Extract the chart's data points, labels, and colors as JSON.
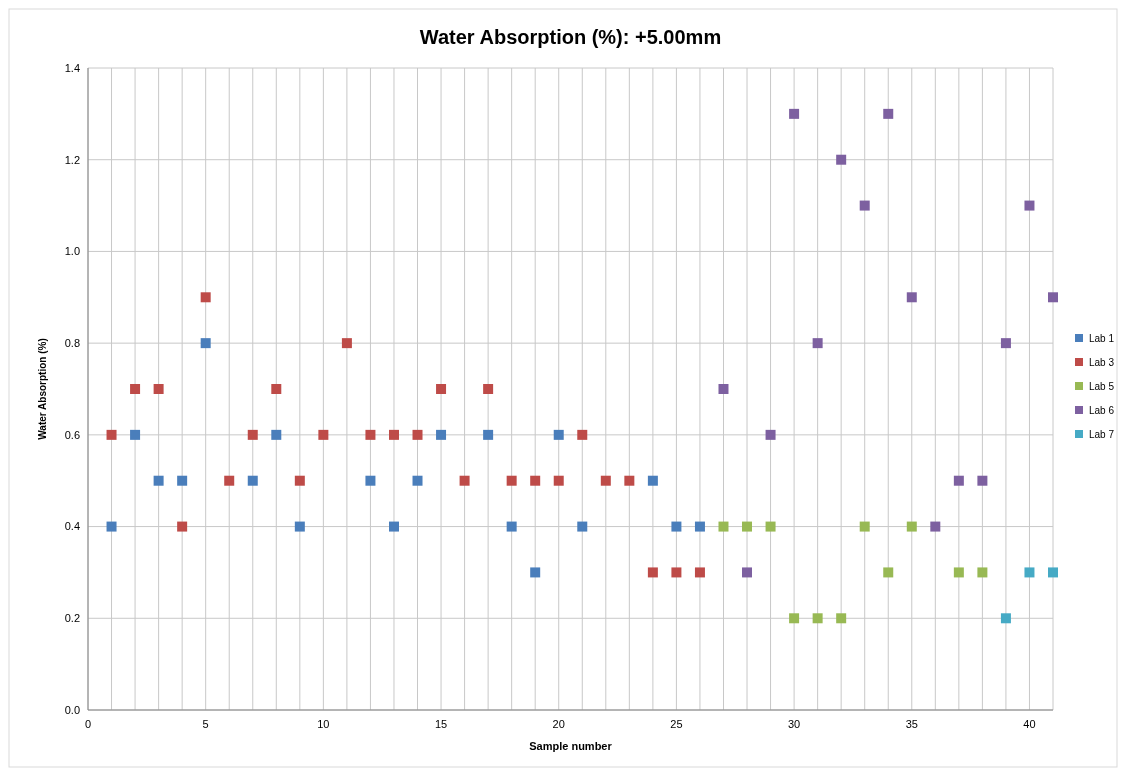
{
  "chart_data": {
    "type": "scatter",
    "title": "Water Absorption (%): +5.00mm",
    "xlabel": "Sample number",
    "ylabel": "Water Absorption (%)",
    "xlim": [
      0,
      41
    ],
    "xticks": [
      0,
      {
        "value": 1,
        "label": null
      },
      {
        "value": 2,
        "label": null
      },
      {
        "value": 3,
        "label": null
      },
      {
        "value": 4,
        "label": null
      },
      5,
      {
        "value": 6,
        "label": null
      },
      {
        "value": 7,
        "label": null
      },
      {
        "value": 8,
        "label": null
      },
      {
        "value": 9,
        "label": null
      },
      10,
      {
        "value": 11,
        "label": null
      },
      {
        "value": 12,
        "label": null
      },
      {
        "value": 13,
        "label": null
      },
      {
        "value": 14,
        "label": null
      },
      15,
      {
        "value": 16,
        "label": null
      },
      {
        "value": 17,
        "label": null
      },
      {
        "value": 18,
        "label": null
      },
      {
        "value": 19,
        "label": null
      },
      20,
      {
        "value": 21,
        "label": null
      },
      {
        "value": 22,
        "label": null
      },
      {
        "value": 23,
        "label": null
      },
      {
        "value": 24,
        "label": null
      },
      25,
      {
        "value": 26,
        "label": null
      },
      {
        "value": 27,
        "label": null
      },
      {
        "value": 28,
        "label": null
      },
      {
        "value": 29,
        "label": null
      },
      30,
      {
        "value": 31,
        "label": null
      },
      {
        "value": 32,
        "label": null
      },
      {
        "value": 33,
        "label": null
      },
      {
        "value": 34,
        "label": null
      },
      35,
      {
        "value": 36,
        "label": null
      },
      {
        "value": 37,
        "label": null
      },
      {
        "value": 38,
        "label": null
      },
      {
        "value": 39,
        "label": null
      },
      40,
      {
        "value": 41,
        "label": null
      }
    ],
    "ylim": [
      0,
      1.4
    ],
    "yticks": [
      {
        "value": 0,
        "label": "0.0"
      },
      {
        "value": 0.2,
        "label": "0.2"
      },
      {
        "value": 0.4,
        "label": "0.4"
      },
      {
        "value": 0.6,
        "label": "0.6"
      },
      {
        "value": 0.8,
        "label": "0.8"
      },
      {
        "value": 1,
        "label": "1.0"
      },
      {
        "value": 1.2,
        "label": "1.2"
      },
      {
        "value": 1.4,
        "label": "1.4"
      }
    ],
    "grid": true,
    "legend": "right",
    "marker": "square",
    "series": [
      {
        "name": "Lab 1",
        "color": "#4a7ebb",
        "x": [
          1,
          2,
          3,
          4,
          5,
          7,
          8,
          9,
          12,
          13,
          14,
          15,
          17,
          18,
          19,
          20,
          21,
          24,
          25,
          26
        ],
        "values": [
          0.4,
          0.6,
          0.5,
          0.5,
          0.8,
          0.5,
          0.6,
          0.4,
          0.5,
          0.4,
          0.5,
          0.6,
          0.6,
          0.4,
          0.3,
          0.6,
          0.4,
          0.5,
          0.4,
          0.4
        ]
      },
      {
        "name": "Lab 3",
        "color": "#be4b48",
        "x": [
          1,
          2,
          3,
          4,
          5,
          6,
          7,
          8,
          9,
          10,
          11,
          12,
          13,
          14,
          15,
          16,
          17,
          18,
          19,
          20,
          21,
          22,
          23,
          24,
          25,
          26
        ],
        "values": [
          0.6,
          0.7,
          0.7,
          0.4,
          0.9,
          0.5,
          0.6,
          0.7,
          0.5,
          0.6,
          0.8,
          0.6,
          0.6,
          0.6,
          0.7,
          0.5,
          0.7,
          0.5,
          0.5,
          0.5,
          0.6,
          0.5,
          0.5,
          0.3,
          0.3,
          0.3
        ]
      },
      {
        "name": "Lab 5",
        "color": "#98b954",
        "x": [
          27,
          28,
          29,
          30,
          31,
          32,
          33,
          34,
          35,
          37,
          38
        ],
        "values": [
          0.4,
          0.4,
          0.4,
          0.2,
          0.2,
          0.2,
          0.4,
          0.3,
          0.4,
          0.3,
          0.3
        ]
      },
      {
        "name": "Lab 6",
        "color": "#7d60a0",
        "x": [
          27,
          28,
          29,
          30,
          31,
          32,
          33,
          34,
          35,
          36,
          37,
          38,
          39,
          40,
          41
        ],
        "values": [
          0.7,
          0.3,
          0.6,
          1.3,
          0.8,
          1.2,
          1.1,
          1.3,
          0.9,
          0.4,
          0.5,
          0.5,
          0.8,
          1.1,
          0.9
        ]
      },
      {
        "name": "Lab 7",
        "color": "#46aac5",
        "x": [
          39,
          40,
          41
        ],
        "values": [
          0.2,
          0.3,
          0.3
        ]
      }
    ]
  }
}
